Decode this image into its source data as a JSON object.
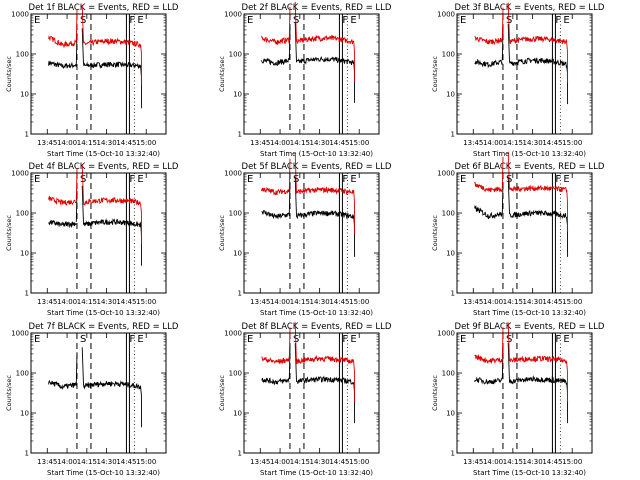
{
  "figure": {
    "colors": {
      "events": "#000000",
      "lld": "#e00000",
      "axes": "#000000",
      "background": "#ffffff"
    }
  },
  "chart_data": [
    {
      "type": "line",
      "title": "Det 1f BLACK = Events, RED = LLD",
      "ylabel": "Counts/sec",
      "xlabel": "Start Time (15-Oct-10 13:32:40)",
      "ylog": true,
      "ylim": [
        1,
        1000
      ],
      "yticks": [
        "1",
        "10",
        "100",
        "1000"
      ],
      "xlim": [
        "13:32:40",
        "15:15:00"
      ],
      "xticks": [
        "13:45",
        "14:00",
        "14:15",
        "14:30",
        "14:45",
        "15:00"
      ],
      "markers": [
        {
          "label": "E",
          "time": "13:32:40",
          "style": "dotted"
        },
        {
          "label": "S",
          "time": "14:07:30",
          "style": "dashed"
        },
        {
          "label": "F",
          "time": "14:45:00",
          "style": "solid"
        },
        {
          "label": "E",
          "time": "14:51:00",
          "style": "dotted"
        }
      ],
      "series": [
        {
          "name": "Events",
          "color": "#000000",
          "level": 55,
          "dip": 50,
          "start_level": 60
        },
        {
          "name": "LLD",
          "color": "#e00000",
          "level": 210,
          "dip": 170,
          "start_level": 260
        }
      ]
    },
    {
      "type": "line",
      "title": "Det 2f BLACK = Events, RED = LLD",
      "ylabel": "Counts/sec",
      "xlabel": "Start Time (15-Oct-10 13:32:40)",
      "ylog": true,
      "ylim": [
        1,
        1000
      ],
      "yticks": [
        "1",
        "10",
        "100",
        "1000"
      ],
      "xlim": [
        "13:32:40",
        "15:15:00"
      ],
      "xticks": [
        "13:45",
        "14:00",
        "14:15",
        "14:30",
        "14:45",
        "15:00"
      ],
      "markers": [
        {
          "label": "E",
          "time": "13:32:40",
          "style": "dotted"
        },
        {
          "label": "S",
          "time": "14:07:30",
          "style": "dashed"
        },
        {
          "label": "F",
          "time": "14:45:00",
          "style": "solid"
        },
        {
          "label": "E",
          "time": "14:51:00",
          "style": "dotted"
        }
      ],
      "series": [
        {
          "name": "Events",
          "color": "#000000",
          "level": 75,
          "dip": 60,
          "start_level": 70
        },
        {
          "name": "LLD",
          "color": "#e00000",
          "level": 250,
          "dip": 200,
          "start_level": 250
        }
      ]
    },
    {
      "type": "line",
      "title": "Det 3f BLACK = Events, RED = LLD",
      "ylabel": "Counts/sec",
      "xlabel": "Start Time (15-Oct-10 13:32:40)",
      "ylog": true,
      "ylim": [
        1,
        1000
      ],
      "yticks": [
        "1",
        "10",
        "100",
        "1000"
      ],
      "xlim": [
        "13:32:40",
        "15:15:00"
      ],
      "xticks": [
        "13:45",
        "14:00",
        "14:15",
        "14:30",
        "14:45",
        "15:00"
      ],
      "markers": [
        {
          "label": "E",
          "time": "13:32:40",
          "style": "dotted"
        },
        {
          "label": "S",
          "time": "14:07:30",
          "style": "dashed"
        },
        {
          "label": "F",
          "time": "14:45:00",
          "style": "solid"
        },
        {
          "label": "E",
          "time": "14:51:00",
          "style": "dotted"
        }
      ],
      "series": [
        {
          "name": "Events",
          "color": "#000000",
          "level": 70,
          "dip": 55,
          "start_level": 65
        },
        {
          "name": "LLD",
          "color": "#e00000",
          "level": 240,
          "dip": 200,
          "start_level": 250
        }
      ]
    },
    {
      "type": "line",
      "title": "Det 4f BLACK = Events, RED = LLD",
      "ylabel": "Counts/sec",
      "xlabel": "Start Time (15-Oct-10 13:32:40)",
      "ylog": true,
      "ylim": [
        1,
        1000
      ],
      "yticks": [
        "1",
        "10",
        "100",
        "1000"
      ],
      "xlim": [
        "13:32:40",
        "15:15:00"
      ],
      "xticks": [
        "13:45",
        "14:00",
        "14:15",
        "14:30",
        "14:45",
        "15:00"
      ],
      "markers": [
        {
          "label": "E",
          "time": "13:32:40",
          "style": "dotted"
        },
        {
          "label": "S",
          "time": "14:07:30",
          "style": "dashed"
        },
        {
          "label": "F",
          "time": "14:45:00",
          "style": "solid"
        },
        {
          "label": "E",
          "time": "14:51:00",
          "style": "dotted"
        }
      ],
      "series": [
        {
          "name": "Events",
          "color": "#000000",
          "level": 60,
          "dip": 50,
          "start_level": 60
        },
        {
          "name": "LLD",
          "color": "#e00000",
          "level": 210,
          "dip": 180,
          "start_level": 230
        }
      ]
    },
    {
      "type": "line",
      "title": "Det 5f BLACK = Events, RED = LLD",
      "ylabel": "Counts/sec",
      "xlabel": "Start Time (15-Oct-10 13:32:40)",
      "ylog": true,
      "ylim": [
        1,
        1000
      ],
      "yticks": [
        "1",
        "10",
        "100",
        "1000"
      ],
      "xlim": [
        "13:32:40",
        "15:15:00"
      ],
      "xticks": [
        "13:45",
        "14:00",
        "14:15",
        "14:30",
        "14:45",
        "15:00"
      ],
      "markers": [
        {
          "label": "E",
          "time": "13:32:40",
          "style": "dotted"
        },
        {
          "label": "S",
          "time": "14:07:30",
          "style": "dashed"
        },
        {
          "label": "F",
          "time": "14:45:00",
          "style": "solid"
        },
        {
          "label": "E",
          "time": "14:51:00",
          "style": "dotted"
        }
      ],
      "series": [
        {
          "name": "Events",
          "color": "#000000",
          "level": 100,
          "dip": 80,
          "start_level": 110
        },
        {
          "name": "LLD",
          "color": "#e00000",
          "level": 380,
          "dip": 330,
          "start_level": 400
        }
      ]
    },
    {
      "type": "line",
      "title": "Det 6f BLACK = Events, RED = LLD",
      "ylabel": "Counts/sec",
      "xlabel": "Start Time (15-Oct-10 13:32:40)",
      "ylog": true,
      "ylim": [
        1,
        1000
      ],
      "yticks": [
        "1",
        "10",
        "100",
        "1000"
      ],
      "xlim": [
        "13:32:40",
        "15:15:00"
      ],
      "xticks": [
        "13:45",
        "14:00",
        "14:15",
        "14:30",
        "14:45",
        "15:00"
      ],
      "markers": [
        {
          "label": "E",
          "time": "13:32:40",
          "style": "dotted"
        },
        {
          "label": "S",
          "time": "14:07:30",
          "style": "dashed"
        },
        {
          "label": "F",
          "time": "14:45:00",
          "style": "solid"
        },
        {
          "label": "E",
          "time": "14:51:00",
          "style": "dotted"
        }
      ],
      "series": [
        {
          "name": "Events",
          "color": "#000000",
          "level": 100,
          "dip": 85,
          "start_level": 130
        },
        {
          "name": "LLD",
          "color": "#e00000",
          "level": 420,
          "dip": 380,
          "start_level": 520
        }
      ]
    },
    {
      "type": "line",
      "title": "Det 7f BLACK = Events, RED = LLD",
      "ylabel": "Counts/sec",
      "xlabel": "Start Time (15-Oct-10 13:32:40)",
      "ylog": true,
      "ylim": [
        1,
        1000
      ],
      "yticks": [
        "1",
        "10",
        "100",
        "1000"
      ],
      "xlim": [
        "13:32:40",
        "15:15:00"
      ],
      "xticks": [
        "13:45",
        "14:00",
        "14:15",
        "14:30",
        "14:45",
        "15:00"
      ],
      "markers": [
        {
          "label": "E",
          "time": "13:32:40",
          "style": "dotted"
        },
        {
          "label": "S",
          "time": "14:07:30",
          "style": "dashed"
        },
        {
          "label": "F",
          "time": "14:45:00",
          "style": "solid"
        },
        {
          "label": "E",
          "time": "14:51:00",
          "style": "dotted"
        }
      ],
      "series": [
        {
          "name": "Events",
          "color": "#000000",
          "level": 55,
          "dip": 45,
          "start_level": 60
        }
      ]
    },
    {
      "type": "line",
      "title": "Det 8f BLACK = Events, RED = LLD",
      "ylabel": "Counts/sec",
      "xlabel": "Start Time (15-Oct-10 13:32:40)",
      "ylog": true,
      "ylim": [
        1,
        1000
      ],
      "yticks": [
        "1",
        "10",
        "100",
        "1000"
      ],
      "xlim": [
        "13:32:40",
        "15:15:00"
      ],
      "xticks": [
        "13:45",
        "14:00",
        "14:15",
        "14:30",
        "14:45",
        "15:00"
      ],
      "markers": [
        {
          "label": "E",
          "time": "13:32:40",
          "style": "dotted"
        },
        {
          "label": "S",
          "time": "14:07:30",
          "style": "dashed"
        },
        {
          "label": "F",
          "time": "14:45:00",
          "style": "solid"
        },
        {
          "label": "E",
          "time": "14:51:00",
          "style": "dotted"
        }
      ],
      "series": [
        {
          "name": "Events",
          "color": "#000000",
          "level": 70,
          "dip": 60,
          "start_level": 70
        },
        {
          "name": "LLD",
          "color": "#e00000",
          "level": 230,
          "dip": 190,
          "start_level": 230
        }
      ]
    },
    {
      "type": "line",
      "title": "Det 9f BLACK = Events, RED = LLD",
      "ylabel": "Counts/sec",
      "xlabel": "Start Time (15-Oct-10 13:32:40)",
      "ylog": true,
      "ylim": [
        1,
        1000
      ],
      "yticks": [
        "1",
        "10",
        "100",
        "1000"
      ],
      "xlim": [
        "13:32:40",
        "15:15:00"
      ],
      "xticks": [
        "13:45",
        "14:00",
        "14:15",
        "14:30",
        "14:45",
        "15:00"
      ],
      "markers": [
        {
          "label": "E",
          "time": "13:32:40",
          "style": "dotted"
        },
        {
          "label": "S",
          "time": "14:07:30",
          "style": "dashed"
        },
        {
          "label": "F",
          "time": "14:45:00",
          "style": "solid"
        },
        {
          "label": "E",
          "time": "14:51:00",
          "style": "dotted"
        }
      ],
      "series": [
        {
          "name": "Events",
          "color": "#000000",
          "level": 70,
          "dip": 60,
          "start_level": 70
        },
        {
          "name": "LLD",
          "color": "#e00000",
          "level": 230,
          "dip": 200,
          "start_level": 260
        }
      ]
    }
  ]
}
